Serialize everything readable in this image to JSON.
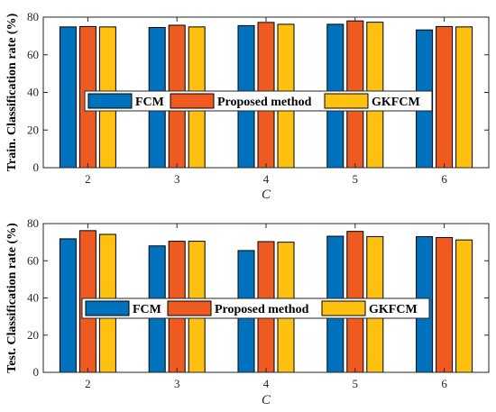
{
  "chart_data": [
    {
      "type": "bar",
      "categories": [
        "2",
        "3",
        "4",
        "5",
        "6"
      ],
      "series": [
        {
          "name": "FCM",
          "values": [
            74.8,
            74.5,
            75.5,
            76.2,
            73.2
          ]
        },
        {
          "name": "Proposed method",
          "values": [
            75.0,
            75.7,
            77.2,
            78.0,
            75.0
          ]
        },
        {
          "name": "GKFCM",
          "values": [
            74.8,
            74.8,
            76.2,
            77.3,
            74.8
          ]
        }
      ],
      "xlabel": "C",
      "ylabel": "Train. Classification rate (%)",
      "ylim": [
        0,
        80
      ],
      "yticks": [
        "0",
        "20",
        "40",
        "60",
        "80"
      ],
      "legend": "center, horizontal",
      "grid": false
    },
    {
      "type": "bar",
      "categories": [
        "2",
        "3",
        "4",
        "5",
        "6"
      ],
      "series": [
        {
          "name": "FCM",
          "values": [
            71.8,
            68.0,
            65.5,
            73.2,
            73.0
          ]
        },
        {
          "name": "Proposed method",
          "values": [
            76.2,
            70.5,
            70.3,
            75.8,
            72.5
          ]
        },
        {
          "name": "GKFCM",
          "values": [
            74.2,
            70.5,
            70.0,
            73.0,
            71.2
          ]
        }
      ],
      "xlabel": "C",
      "ylabel": "Test. Classification rate (%)",
      "ylim": [
        0,
        80
      ],
      "yticks": [
        "0",
        "20",
        "40",
        "60",
        "80"
      ],
      "legend": "center, horizontal",
      "grid": false
    }
  ],
  "colors": {
    "series": [
      "#0072BD",
      "#EE5A1F",
      "#FFC10F"
    ],
    "edge": "#000000",
    "axis": "#262626"
  }
}
